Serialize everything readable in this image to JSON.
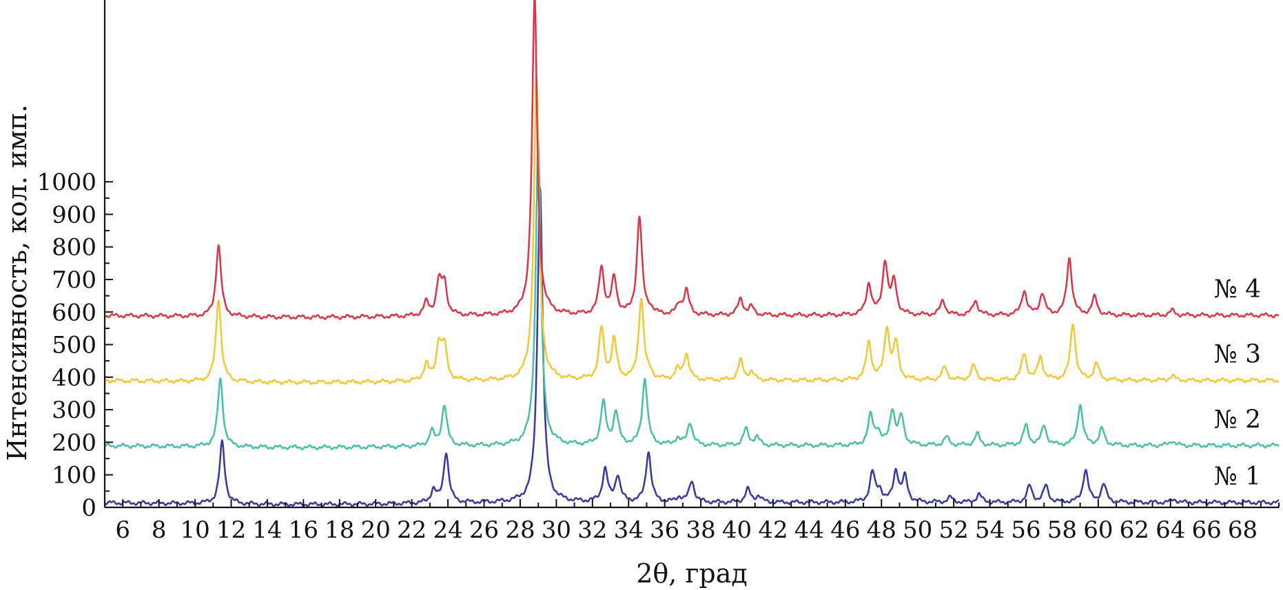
{
  "chart_data": {
    "type": "line",
    "title": "",
    "xlabel": "2θ, град",
    "ylabel": "Интенсивность, кол. имп.",
    "xlim": [
      5,
      70
    ],
    "ylim": [
      0,
      1550
    ],
    "x_ticks": [
      6,
      8,
      10,
      12,
      14,
      16,
      18,
      20,
      22,
      24,
      26,
      28,
      30,
      32,
      34,
      36,
      38,
      40,
      42,
      44,
      46,
      48,
      50,
      52,
      54,
      56,
      58,
      60,
      62,
      64,
      66,
      68
    ],
    "y_ticks": [
      0,
      100,
      200,
      300,
      400,
      500,
      600,
      700,
      800,
      900,
      1000
    ],
    "grid": false,
    "legend": "none",
    "series": [
      {
        "name": "№ 1",
        "color": "#3d3a9e",
        "baseline": 15,
        "peaks": [
          [
            11.5,
            190
          ],
          [
            23.2,
            40
          ],
          [
            23.9,
            155
          ],
          [
            29.1,
            970
          ],
          [
            32.7,
            100
          ],
          [
            33.4,
            80
          ],
          [
            35.1,
            155
          ],
          [
            36.8,
            15
          ],
          [
            37.5,
            65
          ],
          [
            40.6,
            40
          ],
          [
            41.2,
            20
          ],
          [
            47.5,
            90
          ],
          [
            47.9,
            35
          ],
          [
            48.8,
            95
          ],
          [
            49.3,
            75
          ],
          [
            51.8,
            15
          ],
          [
            53.4,
            25
          ],
          [
            56.2,
            50
          ],
          [
            57.1,
            50
          ],
          [
            59.3,
            100
          ],
          [
            60.3,
            55
          ],
          [
            64.2,
            10
          ]
        ]
      },
      {
        "name": "№ 2",
        "color": "#4dbfa6",
        "baseline": 190,
        "peaks": [
          [
            11.4,
            210
          ],
          [
            23.1,
            45
          ],
          [
            23.8,
            125
          ],
          [
            29.0,
            940
          ],
          [
            32.6,
            130
          ],
          [
            33.3,
            100
          ],
          [
            34.9,
            205
          ],
          [
            36.7,
            20
          ],
          [
            37.4,
            70
          ],
          [
            40.5,
            50
          ],
          [
            41.1,
            25
          ],
          [
            47.4,
            90
          ],
          [
            47.8,
            40
          ],
          [
            48.6,
            105
          ],
          [
            49.1,
            85
          ],
          [
            51.6,
            25
          ],
          [
            53.3,
            35
          ],
          [
            56.0,
            60
          ],
          [
            57.0,
            60
          ],
          [
            59.0,
            125
          ],
          [
            60.2,
            50
          ],
          [
            64.1,
            15
          ]
        ]
      },
      {
        "name": "№ 3",
        "color": "#f0c93a",
        "baseline": 390,
        "peaks": [
          [
            11.3,
            255
          ],
          [
            22.8,
            50
          ],
          [
            23.5,
            110
          ],
          [
            23.8,
            100
          ],
          [
            28.9,
            930
          ],
          [
            32.5,
            155
          ],
          [
            33.2,
            120
          ],
          [
            34.7,
            250
          ],
          [
            35.2,
            15
          ],
          [
            36.7,
            30
          ],
          [
            37.2,
            80
          ],
          [
            40.2,
            60
          ],
          [
            40.8,
            25
          ],
          [
            47.3,
            115
          ],
          [
            48.3,
            155
          ],
          [
            48.8,
            110
          ],
          [
            51.5,
            40
          ],
          [
            53.1,
            45
          ],
          [
            55.9,
            80
          ],
          [
            56.8,
            70
          ],
          [
            58.6,
            175
          ],
          [
            59.9,
            50
          ],
          [
            64.1,
            15
          ]
        ]
      },
      {
        "name": "№ 4",
        "color": "#d6394a",
        "baseline": 590,
        "peaks": [
          [
            11.3,
            220
          ],
          [
            22.8,
            40
          ],
          [
            23.5,
            100
          ],
          [
            23.8,
            95
          ],
          [
            28.8,
            975
          ],
          [
            32.5,
            145
          ],
          [
            33.2,
            110
          ],
          [
            34.6,
            300
          ],
          [
            35.2,
            15
          ],
          [
            36.8,
            30
          ],
          [
            37.2,
            75
          ],
          [
            40.2,
            50
          ],
          [
            40.8,
            25
          ],
          [
            47.3,
            95
          ],
          [
            48.2,
            160
          ],
          [
            48.7,
            100
          ],
          [
            51.4,
            45
          ],
          [
            53.2,
            45
          ],
          [
            55.9,
            75
          ],
          [
            56.9,
            65
          ],
          [
            58.4,
            175
          ],
          [
            59.8,
            55
          ],
          [
            64.1,
            15
          ]
        ]
      }
    ]
  }
}
